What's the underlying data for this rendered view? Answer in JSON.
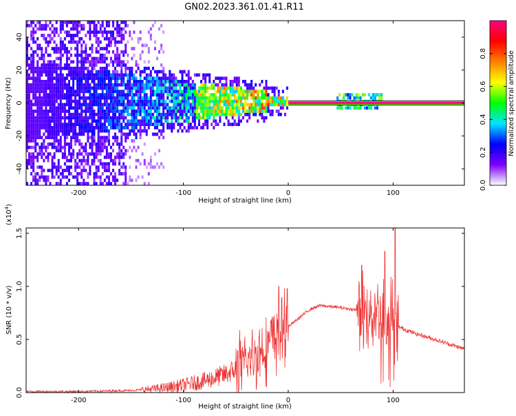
{
  "title": "GN02.2023.361.01.41.R11",
  "chart_data": [
    {
      "type": "heatmap",
      "xlabel": "Height of straight line (km)",
      "ylabel": "Frequency (Hz)",
      "xlim": [
        -250,
        168
      ],
      "ylim": [
        -50,
        50
      ],
      "x_ticks": [
        -200,
        -100,
        0,
        100
      ],
      "y_ticks": [
        -40,
        -20,
        0,
        20,
        40
      ],
      "colorbar": {
        "label": "Normalized spectral amplitude",
        "range": [
          0,
          1
        ],
        "ticks": [
          "0.0",
          "0.2",
          "0.4",
          "0.6",
          "0.8"
        ],
        "colors": [
          "#ffffff",
          "#7b00ff",
          "#0000ff",
          "#00e5ff",
          "#00ff00",
          "#ffff00",
          "#ff8000",
          "#ff0000",
          "#ff0080"
        ]
      },
      "main_line": {
        "frequency": 0,
        "x_start": 0,
        "x_end": 168,
        "amplitude": 1.0
      },
      "grid": false
    },
    {
      "type": "line",
      "xlabel": "Height of straight line (km)",
      "ylabel": "SNR (10 * v/v)",
      "y_multiplier": "(x10",
      "y_exponent": "4",
      "y_multiplier_close": ")",
      "xlim": [
        -250,
        168
      ],
      "ylim": [
        0,
        1.55
      ],
      "x_ticks": [
        -200,
        -100,
        0,
        100
      ],
      "y_ticks": [
        "0.0",
        "0.5",
        "1.0",
        "1.5"
      ],
      "color": "#ee3333",
      "envelope": {
        "x": [
          -250,
          -200,
          -150,
          -120,
          -100,
          -80,
          -60,
          -40,
          -20,
          0,
          20,
          30,
          50,
          70,
          90,
          100,
          105,
          120,
          140,
          168
        ],
        "y": [
          0.01,
          0.01,
          0.02,
          0.04,
          0.07,
          0.11,
          0.17,
          0.27,
          0.45,
          0.62,
          0.78,
          0.82,
          0.8,
          0.77,
          0.73,
          0.7,
          0.62,
          0.56,
          0.5,
          0.41
        ]
      },
      "spikes": [
        {
          "x": 92,
          "y": 1.33
        },
        {
          "x": 102,
          "y": 1.55
        },
        {
          "x": 70,
          "y": 1.2
        },
        {
          "x": -1,
          "y": 0.98
        },
        {
          "x": -9,
          "y": 1.0
        }
      ],
      "grid": false
    }
  ]
}
